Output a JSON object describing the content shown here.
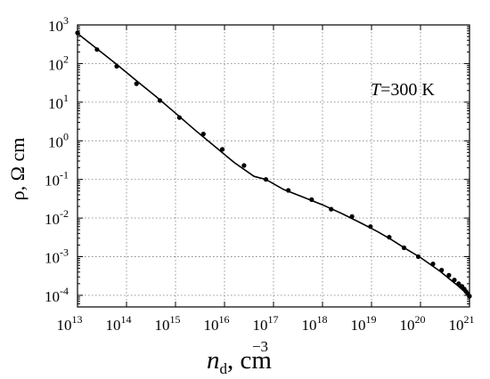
{
  "chart_data": {
    "type": "line",
    "x_scale": "log",
    "y_scale": "log",
    "xlim": [
      10000000000000.0,
      1e+21
    ],
    "ylim": [
      5e-05,
      1000
    ],
    "grid": true,
    "ylabel": {
      "main": "ρ, Ω cm"
    },
    "xlabel": {
      "symbol": "n",
      "subscript": "d",
      "separator": ", ",
      "unit": "cm",
      "exponent": "−3"
    },
    "annotation": {
      "italic": "T",
      "rest": "=300 K"
    },
    "x_ticks": [
      {
        "base": "10",
        "exp": "13"
      },
      {
        "base": "10",
        "exp": "14"
      },
      {
        "base": "10",
        "exp": "15"
      },
      {
        "base": "10",
        "exp": "16"
      },
      {
        "base": "10",
        "exp": "17"
      },
      {
        "base": "10",
        "exp": "18"
      },
      {
        "base": "10",
        "exp": "19"
      },
      {
        "base": "10",
        "exp": "20"
      },
      {
        "base": "10",
        "exp": "21"
      }
    ],
    "y_ticks": [
      {
        "base": "10",
        "exp": "-4"
      },
      {
        "base": "10",
        "exp": "-3"
      },
      {
        "base": "10",
        "exp": "-2"
      },
      {
        "base": "10",
        "exp": "-1"
      },
      {
        "base": "10",
        "exp": "0"
      },
      {
        "base": "10",
        "exp": "1"
      },
      {
        "base": "10",
        "exp": "2"
      },
      {
        "base": "10",
        "exp": "3"
      }
    ],
    "x_tick_values": [
      10000000000000.0,
      100000000000000.0,
      1000000000000000.0,
      1e+16,
      1e+17,
      1e+18,
      1e+19,
      1e+20,
      1e+21
    ],
    "y_tick_values": [
      0.0001,
      0.001,
      0.01,
      0.1,
      1,
      10,
      100,
      1000
    ],
    "series": [
      {
        "style": "line",
        "x": [
          10000000000000.0,
          25000000000000.0,
          63000000000000.0,
          160000000000000.0,
          400000000000000.0,
          1000000000000000.0,
          2500000000000000.0,
          6300000000000000.0,
          1.6e+16,
          4e+16,
          7e+16,
          1.6e+17,
          4e+17,
          1e+18,
          2.5e+18,
          6e+18,
          1.3e+19,
          2.5e+19,
          5e+19,
          1e+20,
          2.5e+20,
          6e+20,
          1e+21
        ],
        "y": [
          600,
          240,
          95,
          36,
          14,
          5.2,
          1.9,
          0.72,
          0.27,
          0.12,
          0.1,
          0.055,
          0.035,
          0.022,
          0.013,
          0.0075,
          0.0045,
          0.0028,
          0.0016,
          0.00095,
          0.00042,
          0.00017,
          9.5e-05
        ]
      },
      {
        "style": "points",
        "x": [
          10000000000000.0,
          25000000000000.0,
          63000000000000.0,
          160000000000000.0,
          480000000000000.0,
          1200000000000000.0,
          3700000000000000.0,
          9000000000000000.0,
          2.5e+16,
          7e+16,
          2e+17,
          6e+17,
          1.5e+18,
          4e+18,
          9.5e+18,
          2.3e+19,
          4.6e+19,
          9e+19,
          1.8e+20,
          2.7e+20,
          3.8e+20,
          4.9e+20,
          6e+20,
          7e+20,
          7.8e+20,
          8.5e+20,
          9.2e+20,
          1e+21
        ],
        "y": [
          620,
          230,
          85,
          30,
          11,
          4,
          1.5,
          0.6,
          0.23,
          0.1,
          0.052,
          0.03,
          0.017,
          0.011,
          0.006,
          0.0032,
          0.0017,
          0.001,
          0.00065,
          0.00045,
          0.00033,
          0.00025,
          0.0002,
          0.00017,
          0.000145,
          0.000125,
          0.00011,
          9.5e-05
        ]
      }
    ]
  }
}
